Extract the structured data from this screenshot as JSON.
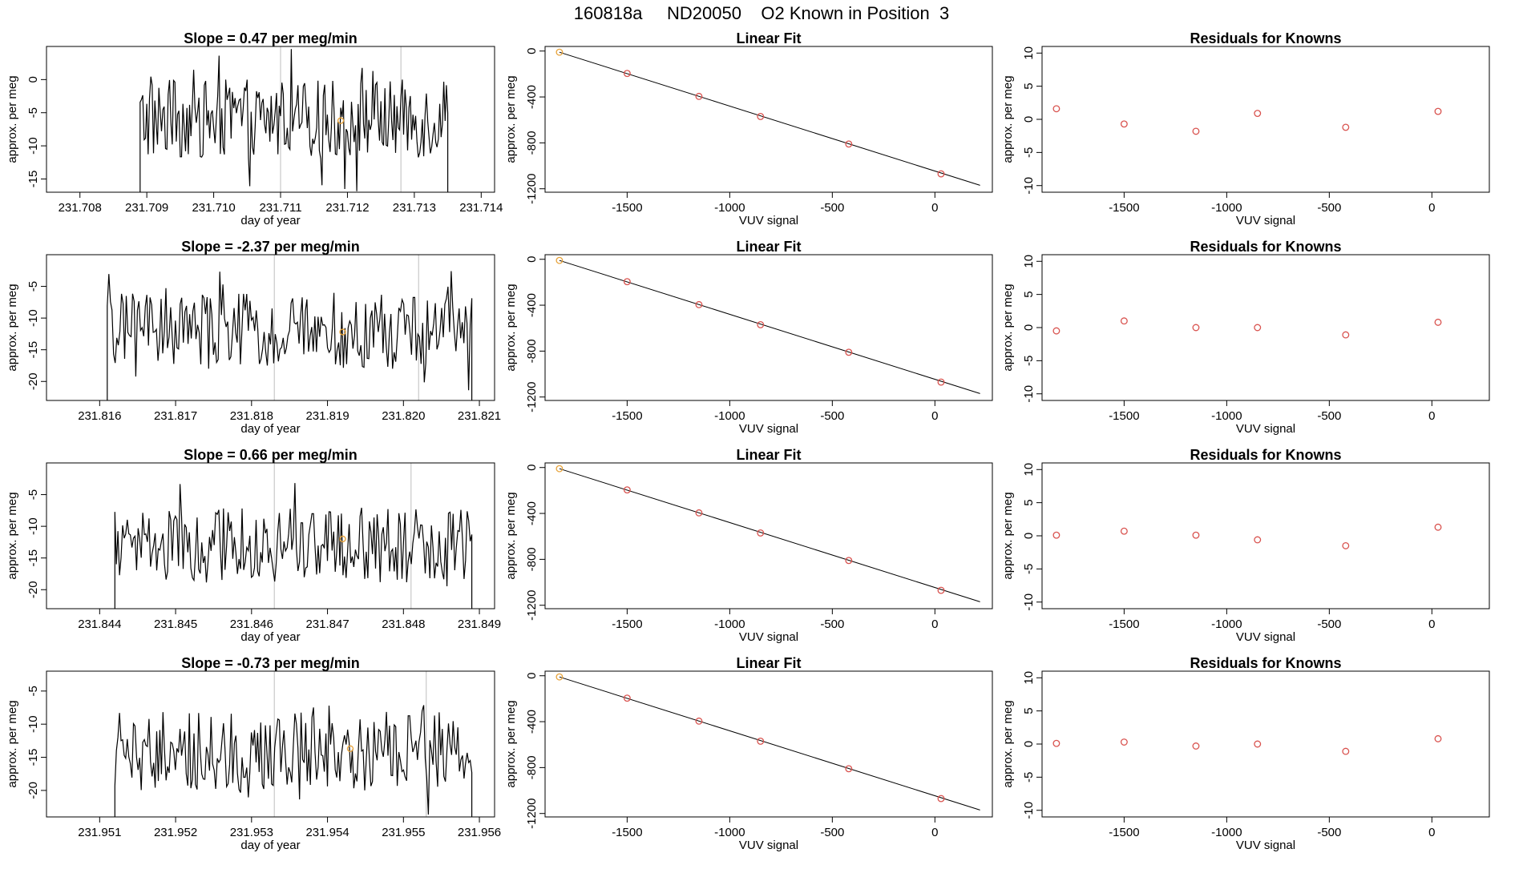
{
  "page_title": "160818a     ND20050    O2 Known in Position  3",
  "colors": {
    "trace": "#000000",
    "known_marker": "#e8a33a",
    "fit_marker": "#d9534f",
    "vline": "#c8c8c8"
  },
  "chart_data": [
    {
      "type": "line",
      "panel": "timeseries",
      "title": "Slope =  0.47  per meg/min",
      "xlabel": "day of year",
      "ylabel": "approx. per meg",
      "xlim": [
        231.7075,
        231.7142
      ],
      "ylim": [
        -17,
        5
      ],
      "xticks": [
        "231.708",
        "231.709",
        "231.710",
        "231.711",
        "231.712",
        "231.713",
        "231.714"
      ],
      "yticks": [
        "-15",
        "-10",
        "-5",
        "0"
      ],
      "series_start": 231.7089,
      "series_end": 231.7135,
      "series_mean": -6,
      "series_amp": 6,
      "vlines": [
        231.711,
        231.7128
      ],
      "highlight_point": [
        231.7119,
        -6.2
      ]
    },
    {
      "type": "line",
      "panel": "fit",
      "title": "Linear Fit",
      "xlabel": "VUV signal",
      "ylabel": "approx. per meg",
      "xlim": [
        -1900,
        280
      ],
      "ylim": [
        -1230,
        40
      ],
      "xticks": [
        "-1500",
        "-1000",
        "-500",
        "0"
      ],
      "yticks": [
        "-1200",
        "-800",
        "-400",
        "0"
      ],
      "points": [
        [
          -1830,
          -10
        ],
        [
          -1500,
          -195
        ],
        [
          -1150,
          -395
        ],
        [
          -850,
          -570
        ],
        [
          -420,
          -810
        ],
        [
          30,
          -1070
        ]
      ],
      "fit_line": [
        [
          -1830,
          -10
        ],
        [
          220,
          -1170
        ]
      ]
    },
    {
      "type": "scatter",
      "panel": "residuals",
      "title": "Residuals for Knowns",
      "xlabel": "VUV signal",
      "ylabel": "approx. per meg",
      "xlim": [
        -1900,
        280
      ],
      "ylim": [
        -11,
        11
      ],
      "xticks": [
        "-1500",
        "-1000",
        "-500",
        "0"
      ],
      "yticks": [
        "-10",
        "-5",
        "0",
        "5",
        "10"
      ],
      "points": [
        [
          -1830,
          1.6
        ],
        [
          -1500,
          -0.7
        ],
        [
          -1150,
          -1.8
        ],
        [
          -850,
          0.9
        ],
        [
          -420,
          -1.2
        ],
        [
          30,
          1.2
        ]
      ]
    },
    {
      "type": "line",
      "panel": "timeseries",
      "title": "Slope =  -2.37  per meg/min",
      "xlabel": "day of year",
      "ylabel": "approx. per meg",
      "xlim": [
        231.8153,
        231.8212
      ],
      "ylim": [
        -23,
        0
      ],
      "xticks": [
        "231.816",
        "231.817",
        "231.818",
        "231.819",
        "231.820",
        "231.821"
      ],
      "yticks": [
        "-20",
        "-15",
        "-10",
        "-5"
      ],
      "series_start": 231.8161,
      "series_end": 231.8209,
      "series_mean": -12,
      "series_amp": 6,
      "vlines": [
        231.8183,
        231.8202
      ],
      "highlight_point": [
        231.8192,
        -12.2
      ]
    },
    {
      "type": "line",
      "panel": "fit",
      "title": "Linear Fit",
      "xlabel": "VUV signal",
      "ylabel": "approx. per meg",
      "xlim": [
        -1900,
        280
      ],
      "ylim": [
        -1230,
        40
      ],
      "xticks": [
        "-1500",
        "-1000",
        "-500",
        "0"
      ],
      "yticks": [
        "-1200",
        "-800",
        "-400",
        "0"
      ],
      "points": [
        [
          -1830,
          -10
        ],
        [
          -1500,
          -195
        ],
        [
          -1150,
          -395
        ],
        [
          -850,
          -570
        ],
        [
          -420,
          -810
        ],
        [
          30,
          -1070
        ]
      ],
      "fit_line": [
        [
          -1830,
          -10
        ],
        [
          220,
          -1170
        ]
      ]
    },
    {
      "type": "scatter",
      "panel": "residuals",
      "title": "Residuals for Knowns",
      "xlabel": "VUV signal",
      "ylabel": "approx. per meg",
      "xlim": [
        -1900,
        280
      ],
      "ylim": [
        -11,
        11
      ],
      "xticks": [
        "-1500",
        "-1000",
        "-500",
        "0"
      ],
      "yticks": [
        "-10",
        "-5",
        "0",
        "5",
        "10"
      ],
      "points": [
        [
          -1830,
          -0.5
        ],
        [
          -1500,
          1.0
        ],
        [
          -1150,
          0.0
        ],
        [
          -850,
          0.0
        ],
        [
          -420,
          -1.1
        ],
        [
          30,
          0.8
        ]
      ]
    },
    {
      "type": "line",
      "panel": "timeseries",
      "title": "Slope =  0.66  per meg/min",
      "xlabel": "day of year",
      "ylabel": "approx. per meg",
      "xlim": [
        231.8433,
        231.8492
      ],
      "ylim": [
        -23,
        0
      ],
      "xticks": [
        "231.844",
        "231.845",
        "231.846",
        "231.847",
        "231.848",
        "231.849"
      ],
      "yticks": [
        "-20",
        "-15",
        "-10",
        "-5"
      ],
      "series_start": 231.8442,
      "series_end": 231.8489,
      "series_mean": -13,
      "series_amp": 6,
      "vlines": [
        231.8463,
        231.8481
      ],
      "highlight_point": [
        231.8472,
        -12
      ]
    },
    {
      "type": "line",
      "panel": "fit",
      "title": "Linear Fit",
      "xlabel": "VUV signal",
      "ylabel": "approx. per meg",
      "xlim": [
        -1900,
        280
      ],
      "ylim": [
        -1230,
        40
      ],
      "xticks": [
        "-1500",
        "-1000",
        "-500",
        "0"
      ],
      "yticks": [
        "-1200",
        "-800",
        "-400",
        "0"
      ],
      "points": [
        [
          -1830,
          -10
        ],
        [
          -1500,
          -195
        ],
        [
          -1150,
          -395
        ],
        [
          -850,
          -570
        ],
        [
          -420,
          -810
        ],
        [
          30,
          -1070
        ]
      ],
      "fit_line": [
        [
          -1830,
          -10
        ],
        [
          220,
          -1170
        ]
      ]
    },
    {
      "type": "scatter",
      "panel": "residuals",
      "title": "Residuals for Knowns",
      "xlabel": "VUV signal",
      "ylabel": "approx. per meg",
      "xlim": [
        -1900,
        280
      ],
      "ylim": [
        -11,
        11
      ],
      "xticks": [
        "-1500",
        "-1000",
        "-500",
        "0"
      ],
      "yticks": [
        "-10",
        "-5",
        "0",
        "5",
        "10"
      ],
      "points": [
        [
          -1830,
          0.1
        ],
        [
          -1500,
          0.7
        ],
        [
          -1150,
          0.1
        ],
        [
          -850,
          -0.6
        ],
        [
          -420,
          -1.5
        ],
        [
          30,
          1.3
        ]
      ]
    },
    {
      "type": "line",
      "panel": "timeseries",
      "title": "Slope =  -0.73  per meg/min",
      "xlabel": "day of year",
      "ylabel": "approx. per meg",
      "xlim": [
        231.9503,
        231.9562
      ],
      "ylim": [
        -24,
        -2
      ],
      "xticks": [
        "231.951",
        "231.952",
        "231.953",
        "231.954",
        "231.955",
        "231.956"
      ],
      "yticks": [
        "-20",
        "-15",
        "-10",
        "-5"
      ],
      "series_start": 231.9512,
      "series_end": 231.9559,
      "series_mean": -14,
      "series_amp": 6,
      "vlines": [
        231.9533,
        231.9553
      ],
      "highlight_point": [
        231.9543,
        -13.7
      ]
    },
    {
      "type": "line",
      "panel": "fit",
      "title": "Linear Fit",
      "xlabel": "VUV signal",
      "ylabel": "approx. per meg",
      "xlim": [
        -1900,
        280
      ],
      "ylim": [
        -1230,
        40
      ],
      "xticks": [
        "-1500",
        "-1000",
        "-500",
        "0"
      ],
      "yticks": [
        "-1200",
        "-800",
        "-400",
        "0"
      ],
      "points": [
        [
          -1830,
          -10
        ],
        [
          -1500,
          -195
        ],
        [
          -1150,
          -395
        ],
        [
          -850,
          -570
        ],
        [
          -420,
          -810
        ],
        [
          30,
          -1070
        ]
      ],
      "fit_line": [
        [
          -1830,
          -10
        ],
        [
          220,
          -1170
        ]
      ]
    },
    {
      "type": "scatter",
      "panel": "residuals",
      "title": "Residuals for Knowns",
      "xlabel": "VUV signal",
      "ylabel": "approx. per meg",
      "xlim": [
        -1900,
        280
      ],
      "ylim": [
        -11,
        11
      ],
      "xticks": [
        "-1500",
        "-1000",
        "-500",
        "0"
      ],
      "yticks": [
        "-10",
        "-5",
        "0",
        "5",
        "10"
      ],
      "points": [
        [
          -1830,
          0.1
        ],
        [
          -1500,
          0.3
        ],
        [
          -1150,
          -0.3
        ],
        [
          -850,
          0.0
        ],
        [
          -420,
          -1.1
        ],
        [
          30,
          0.8
        ]
      ]
    }
  ]
}
